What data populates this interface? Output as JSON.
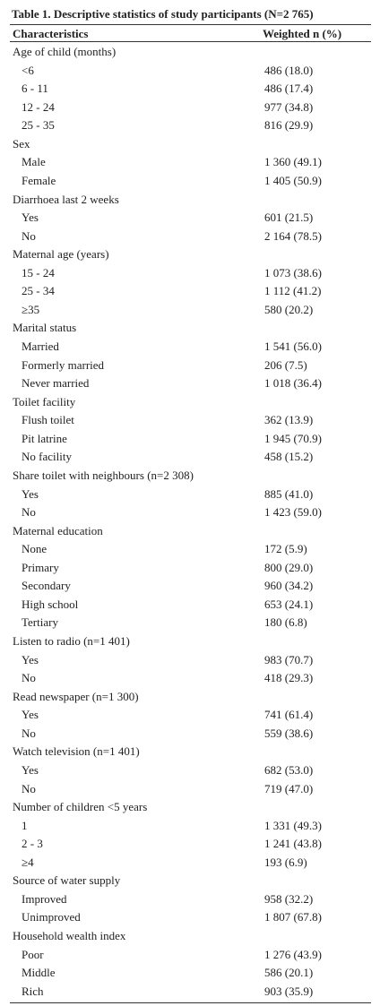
{
  "table": {
    "title": "Table 1. Descriptive statistics of study participants (N=2 765)",
    "header": [
      "Characteristics",
      "Weighted n (%)"
    ],
    "groups": [
      {
        "label": "Age of child (months)",
        "rows": [
          [
            "<6",
            "486 (18.0)"
          ],
          [
            "6 - 11",
            "486 (17.4)"
          ],
          [
            "12 - 24",
            "977 (34.8)"
          ],
          [
            "25 - 35",
            "816 (29.9)"
          ]
        ]
      },
      {
        "label": "Sex",
        "rows": [
          [
            "Male",
            "1 360 (49.1)"
          ],
          [
            "Female",
            "1 405 (50.9)"
          ]
        ]
      },
      {
        "label": "Diarrhoea last 2 weeks",
        "rows": [
          [
            "Yes",
            "601 (21.5)"
          ],
          [
            "No",
            "2 164 (78.5)"
          ]
        ]
      },
      {
        "label": "Maternal age (years)",
        "rows": [
          [
            "15 - 24",
            "1 073 (38.6)"
          ],
          [
            "25 - 34",
            "1 112 (41.2)"
          ],
          [
            "≥35",
            "580 (20.2)"
          ]
        ]
      },
      {
        "label": "Marital status",
        "rows": [
          [
            "Married",
            "1 541 (56.0)"
          ],
          [
            "Formerly married",
            "206 (7.5)"
          ],
          [
            "Never married",
            "1 018 (36.4)"
          ]
        ]
      },
      {
        "label": "Toilet facility",
        "rows": [
          [
            "Flush toilet",
            "362 (13.9)"
          ],
          [
            "Pit latrine",
            "1 945 (70.9)"
          ],
          [
            "No facility",
            "458 (15.2)"
          ]
        ]
      },
      {
        "label": "Share toilet with neighbours (n=2 308)",
        "rows": [
          [
            "Yes",
            "885 (41.0)"
          ],
          [
            "No",
            "1 423 (59.0)"
          ]
        ]
      },
      {
        "label": "Maternal education",
        "rows": [
          [
            "None",
            "172 (5.9)"
          ],
          [
            "Primary",
            "800 (29.0)"
          ],
          [
            "Secondary",
            "960 (34.2)"
          ],
          [
            "High school",
            "653 (24.1)"
          ],
          [
            "Tertiary",
            "180 (6.8)"
          ]
        ]
      },
      {
        "label": "Listen to radio (n=1 401)",
        "rows": [
          [
            "Yes",
            "983 (70.7)"
          ],
          [
            "No",
            "418 (29.3)"
          ]
        ]
      },
      {
        "label": "Read newspaper (n=1 300)",
        "rows": [
          [
            "Yes",
            "741 (61.4)"
          ],
          [
            "No",
            "559 (38.6)"
          ]
        ]
      },
      {
        "label": "Watch television (n=1 401)",
        "rows": [
          [
            "Yes",
            "682 (53.0)"
          ],
          [
            "No",
            "719 (47.0)"
          ]
        ]
      },
      {
        "label": "Number of children <5 years",
        "rows": [
          [
            "1",
            "1 331 (49.3)"
          ],
          [
            "2 - 3",
            "1 241 (43.8)"
          ],
          [
            "≥4",
            "193 (6.9)"
          ]
        ]
      },
      {
        "label": "Source of water supply",
        "rows": [
          [
            "Improved",
            "958 (32.2)"
          ],
          [
            "Unimproved",
            "1 807 (67.8)"
          ]
        ]
      },
      {
        "label": "Household wealth index",
        "rows": [
          [
            "Poor",
            "1 276 (43.9)"
          ],
          [
            "Middle",
            "586 (20.1)"
          ],
          [
            "Rich",
            "903 (35.9)"
          ]
        ]
      }
    ]
  }
}
